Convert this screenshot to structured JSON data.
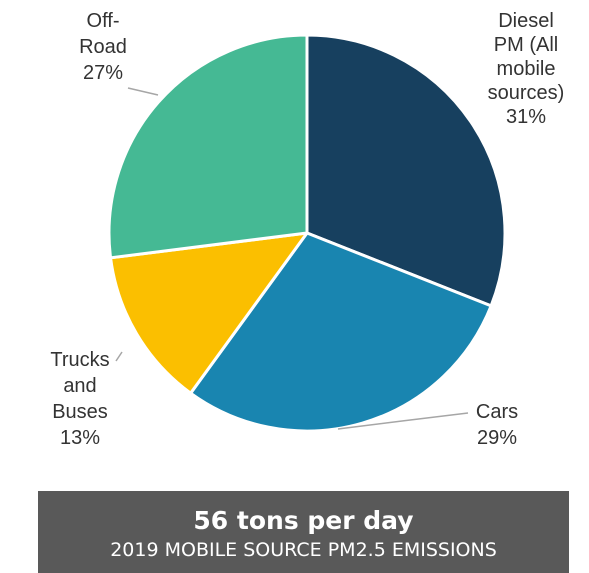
{
  "chart_data": {
    "type": "pie",
    "slices": [
      {
        "label": [
          "Diesel",
          "PM (All",
          "mobile",
          "sources)"
        ],
        "value": 31,
        "value_label": "31%",
        "color": "#17405f"
      },
      {
        "label": [
          "Cars"
        ],
        "value": 29,
        "value_label": "29%",
        "color": "#1985b0"
      },
      {
        "label": [
          "Trucks",
          "and",
          "Buses"
        ],
        "value": 13,
        "value_label": "13%",
        "color": "#fbbf00"
      },
      {
        "label": [
          "Off-",
          "Road"
        ],
        "value": 27,
        "value_label": "27%",
        "color": "#45b994"
      }
    ],
    "start": "12 o'clock",
    "direction": "clockwise",
    "legend": "none"
  },
  "banner": {
    "title": "56 tons per day",
    "subtitle": "2019 MOBILE SOURCE PM2.5  EMISSIONS",
    "color": "#595959"
  }
}
